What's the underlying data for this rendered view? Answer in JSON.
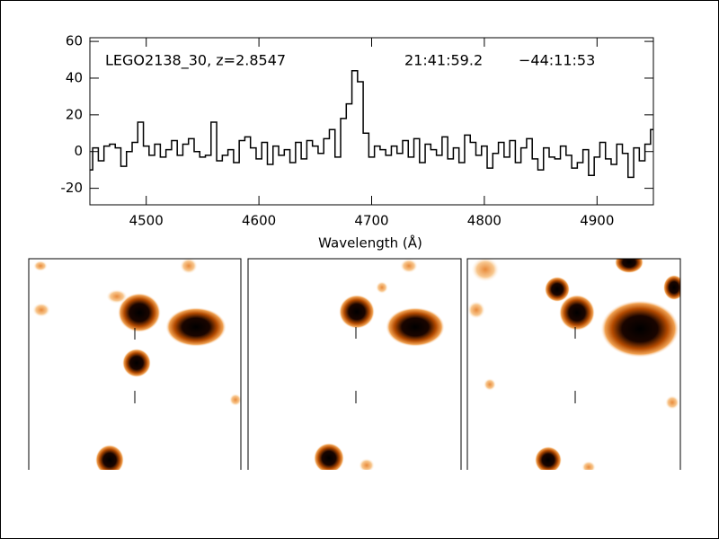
{
  "chart_data": {
    "type": "line",
    "step": true,
    "title": "LEGO2138_30, z=2.8547",
    "annotations": [
      "21:41:59.2",
      "−44:11:53"
    ],
    "x_label": "Wavelength (Å)",
    "xlim": [
      4450,
      4950
    ],
    "xticks": [
      4500,
      4600,
      4700,
      4800,
      4900
    ],
    "ylim": [
      -29,
      62
    ],
    "yticks": [
      -20,
      0,
      20,
      40,
      60
    ],
    "color": "#000000",
    "x": [
      4450,
      4455,
      4460,
      4465,
      4470,
      4475,
      4480,
      4485,
      4490,
      4495,
      4500,
      4505,
      4510,
      4515,
      4520,
      4525,
      4530,
      4535,
      4540,
      4545,
      4550,
      4555,
      4560,
      4565,
      4570,
      4575,
      4580,
      4585,
      4590,
      4595,
      4600,
      4605,
      4610,
      4615,
      4620,
      4625,
      4630,
      4635,
      4640,
      4645,
      4650,
      4655,
      4660,
      4665,
      4670,
      4675,
      4680,
      4685,
      4690,
      4695,
      4700,
      4705,
      4710,
      4715,
      4720,
      4725,
      4730,
      4735,
      4740,
      4745,
      4750,
      4755,
      4760,
      4765,
      4770,
      4775,
      4780,
      4785,
      4790,
      4795,
      4800,
      4805,
      4810,
      4815,
      4820,
      4825,
      4830,
      4835,
      4840,
      4845,
      4850,
      4855,
      4860,
      4865,
      4870,
      4875,
      4880,
      4885,
      4890,
      4895,
      4900,
      4905,
      4910,
      4915,
      4920,
      4925,
      4930,
      4935,
      4940,
      4945,
      4950
    ],
    "values": [
      -10,
      2,
      -5,
      3,
      4,
      2,
      -8,
      0,
      5,
      16,
      3,
      -2,
      4,
      -3,
      1,
      6,
      -2,
      4,
      7,
      0,
      -3,
      -2,
      16,
      -5,
      -2,
      1,
      -6,
      6,
      8,
      2,
      -4,
      5,
      -7,
      3,
      -2,
      1,
      -6,
      5,
      -4,
      6,
      3,
      -1,
      7,
      12,
      -3,
      18,
      26,
      44,
      38,
      10,
      -3,
      3,
      1,
      -2,
      3,
      -1,
      6,
      -3,
      7,
      -6,
      4,
      1,
      -2,
      8,
      -4,
      2,
      -6,
      9,
      5,
      -2,
      3,
      -9,
      -1,
      5,
      -3,
      6,
      -6,
      2,
      7,
      -4,
      -10,
      2,
      -3,
      -4,
      3,
      -2,
      -9,
      -6,
      1,
      -13,
      -3,
      5,
      -4,
      -7,
      4,
      -1,
      -14,
      2,
      -5,
      4,
      12
    ]
  }
}
